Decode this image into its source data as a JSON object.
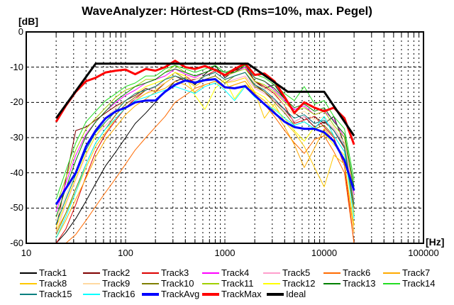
{
  "window": {
    "title": "WaveAnalyzer: Hörtest-CD (Rms=10%, max. Pegel)"
  },
  "axes": {
    "y_unit_label": "[dB]",
    "x_unit_label": "[Hz]",
    "y_tick_labels": [
      "0",
      "-10",
      "-20",
      "-30",
      "-40",
      "-50",
      "-60"
    ],
    "y_tick_values": [
      0,
      -10,
      -20,
      -30,
      -40,
      -50,
      -60
    ],
    "x_tick_labels": [
      "10",
      "100",
      "1000",
      "10000",
      "100000"
    ],
    "x_tick_values": [
      10,
      100,
      1000,
      10000,
      100000
    ]
  },
  "chart_data": {
    "type": "line",
    "title": "WaveAnalyzer: Hörtest-CD (Rms=10%, max. Pegel)",
    "xlabel": "[Hz]",
    "ylabel": "[dB]",
    "x_scale": "log",
    "xlim": [
      10,
      100000
    ],
    "ylim": [
      -60,
      0
    ],
    "grid": true,
    "grid_color": "#000000",
    "frequencies": [
      20,
      25,
      31.5,
      40,
      50,
      63,
      80,
      100,
      125,
      160,
      200,
      250,
      315,
      400,
      500,
      630,
      800,
      1000,
      1250,
      1600,
      2000,
      2500,
      3150,
      4000,
      5000,
      6300,
      8000,
      10000,
      12500,
      16000,
      20000
    ],
    "series": [
      {
        "name": "Track1",
        "color": "#000000",
        "thick": false,
        "values": [
          -60,
          -57,
          -53,
          -48,
          -43,
          -38,
          -34,
          -30,
          -26,
          -23,
          -20,
          -17,
          -14,
          -13,
          -15,
          -12,
          -9.5,
          -13,
          -11,
          -9.2,
          -14,
          -16,
          -15,
          -19,
          -23,
          -25,
          -24,
          -26,
          -24,
          -32,
          -48
        ]
      },
      {
        "name": "Track2",
        "color": "#7f0000",
        "thick": false,
        "values": [
          -56,
          -42,
          -28,
          -27,
          -25,
          -23,
          -21,
          -19.5,
          -18,
          -16,
          -17,
          -14.5,
          -12.5,
          -14,
          -13.5,
          -12.5,
          -11.5,
          -13.5,
          -12.5,
          -11.5,
          -15,
          -17,
          -19.5,
          -22,
          -25.5,
          -24,
          -27,
          -25.5,
          -28,
          -33,
          -52
        ]
      },
      {
        "name": "Track3",
        "color": "#dd0000",
        "thick": false,
        "values": [
          -60,
          -56,
          -49,
          -41,
          -34,
          -29,
          -25,
          -21.5,
          -19,
          -16.5,
          -15.5,
          -13.5,
          -11.5,
          -12.5,
          -14.5,
          -12.5,
          -11,
          -12,
          -11,
          -10,
          -14,
          -15.5,
          -17.5,
          -21,
          -26,
          -25,
          -24,
          -27,
          -30,
          -38,
          -60
        ]
      },
      {
        "name": "Track4",
        "color": "#ff00ff",
        "thick": false,
        "values": [
          -51,
          -43,
          -35,
          -29,
          -25.5,
          -22.5,
          -20,
          -18,
          -16.5,
          -14.5,
          -13.5,
          -12.5,
          -10.5,
          -12,
          -13,
          -11.5,
          -10.5,
          -12.5,
          -11.5,
          -10,
          -13,
          -14,
          -16.5,
          -19.5,
          -22,
          -21,
          -23.5,
          -22.5,
          -25,
          -30,
          -46
        ]
      },
      {
        "name": "Track5",
        "color": "#ff9ecd",
        "thick": false,
        "values": [
          -57,
          -49,
          -42,
          -35,
          -29.5,
          -26.5,
          -23.5,
          -20.5,
          -19,
          -17.5,
          -15.5,
          -14.5,
          -12.5,
          -13.5,
          -15.5,
          -13.5,
          -12.5,
          -14.5,
          -13.5,
          -12.5,
          -16,
          -17.5,
          -19.5,
          -22.5,
          -25.5,
          -24,
          -26,
          -25,
          -27.5,
          -32,
          -48
        ]
      },
      {
        "name": "Track6",
        "color": "#ff6a00",
        "thick": false,
        "values": [
          -60,
          -60,
          -57.5,
          -53.5,
          -49.5,
          -45.5,
          -41.5,
          -37.5,
          -33.5,
          -30,
          -27,
          -24,
          -20,
          -18,
          -16,
          -15,
          -14,
          -16,
          -15,
          -14,
          -18,
          -20.5,
          -24,
          -28,
          -31.5,
          -34.5,
          -30.5,
          -29.5,
          -34,
          -40,
          -60
        ]
      },
      {
        "name": "Track7",
        "color": "#ffaa00",
        "thick": false,
        "values": [
          -58.5,
          -53.5,
          -47.5,
          -41.5,
          -35.5,
          -30.5,
          -27,
          -23.5,
          -21,
          -19,
          -17,
          -16,
          -14,
          -15,
          -17,
          -15,
          -14,
          -16,
          -15,
          -14,
          -17.5,
          -19.5,
          -22.5,
          -27,
          -32,
          -38.5,
          -33,
          -27.5,
          -31,
          -37,
          -57
        ]
      },
      {
        "name": "Track8",
        "color": "#ffc800",
        "thick": false,
        "values": [
          -56.5,
          -51.5,
          -45.5,
          -38.5,
          -32.5,
          -28.5,
          -24.5,
          -21.5,
          -19.5,
          -17.5,
          -16.5,
          -14.5,
          -12.5,
          -13.5,
          -15.5,
          -13.5,
          -12.5,
          -14.5,
          -14,
          -13,
          -17,
          -24.5,
          -20.5,
          -25.5,
          -28.5,
          -32.5,
          -38.5,
          -44,
          -35,
          -37.5,
          -55
        ]
      },
      {
        "name": "Track9",
        "color": "#ffd9a0",
        "thick": false,
        "values": [
          -53.5,
          -46.5,
          -39.5,
          -32.5,
          -27.5,
          -24.5,
          -21.5,
          -19.5,
          -17.5,
          -15.5,
          -14.5,
          -13.5,
          -11.5,
          -12.5,
          -13.5,
          -12.5,
          -11.5,
          -13.5,
          -12.5,
          -11.5,
          -14.5,
          -16,
          -18,
          -21,
          -23.5,
          -22.5,
          -25,
          -24,
          -27,
          -31.5,
          -47
        ]
      },
      {
        "name": "Track10",
        "color": "#7f7f00",
        "thick": false,
        "values": [
          -57.5,
          -51.5,
          -44.5,
          -37.5,
          -31.5,
          -27.5,
          -23.5,
          -20.5,
          -18.5,
          -16.5,
          -15.5,
          -13.5,
          -11.5,
          -13.5,
          -14.5,
          -13.5,
          -12.5,
          -14.5,
          -12.5,
          -11.5,
          -15.5,
          -17,
          -20,
          -23,
          -26.5,
          -25.5,
          -27.5,
          -26.5,
          -29.5,
          -34,
          -50
        ]
      },
      {
        "name": "Track11",
        "color": "#a0d000",
        "thick": false,
        "values": [
          -49.5,
          -41.5,
          -33.5,
          -27.5,
          -24.5,
          -21.5,
          -18.5,
          -16.5,
          -15.5,
          -13.5,
          -13.5,
          -11.5,
          -9.5,
          -11.5,
          -12.5,
          -11.5,
          -10.5,
          -12.5,
          -11.5,
          -10.5,
          -14,
          -15,
          -17,
          -20,
          -22.5,
          -21.5,
          -23.5,
          -22.5,
          -26.5,
          -30,
          -45
        ]
      },
      {
        "name": "Track12",
        "color": "#ffff00",
        "thick": false,
        "values": [
          -55.5,
          -48.5,
          -41.5,
          -34.5,
          -29.5,
          -25.5,
          -22.5,
          -19.5,
          -17.5,
          -15.5,
          -14.5,
          -13.5,
          -11.5,
          -12.5,
          -18,
          -22,
          -16,
          -13.5,
          -19,
          -15,
          -17,
          -18.5,
          -21.5,
          -24.5,
          -28,
          -31,
          -27,
          -29,
          -32,
          -35,
          -52
        ]
      },
      {
        "name": "Track13",
        "color": "#008000",
        "thick": false,
        "values": [
          -52.5,
          -44.5,
          -36.5,
          -29.5,
          -25.5,
          -22.5,
          -19.5,
          -17.5,
          -15.5,
          -14.5,
          -13.5,
          -11.5,
          -10.5,
          -11.5,
          -12.5,
          -11.5,
          -10.5,
          -11.5,
          -11.5,
          -9.5,
          -13,
          -14,
          -16,
          -19,
          -21.5,
          -20.5,
          -22.5,
          -21.5,
          -25.5,
          -29,
          -44
        ]
      },
      {
        "name": "Track14",
        "color": "#22dd22",
        "thick": false,
        "values": [
          -47.5,
          -39.5,
          -31.5,
          -25.5,
          -22.5,
          -19.5,
          -17.5,
          -15.5,
          -14.5,
          -12.5,
          -12.5,
          -10.5,
          -9.5,
          -10.5,
          -11.5,
          -10.5,
          -9.5,
          -11.5,
          -10.5,
          -9.5,
          -12,
          -13,
          -15,
          -17.5,
          -19.5,
          -15.5,
          -20.5,
          -19.5,
          -24,
          -27.5,
          -42
        ]
      },
      {
        "name": "Track15",
        "color": "#007f7f",
        "thick": false,
        "values": [
          -54.5,
          -47.5,
          -40.5,
          -33.5,
          -28.5,
          -25.5,
          -22.5,
          -19.5,
          -17.5,
          -16.5,
          -15.5,
          -13.5,
          -12.5,
          -13.5,
          -14.5,
          -12.5,
          -11.5,
          -13.5,
          -12.5,
          -11.5,
          -15,
          -16.5,
          -19,
          -22,
          -24.5,
          -23.5,
          -26,
          -25,
          -28,
          -32.5,
          -49
        ]
      },
      {
        "name": "Track16",
        "color": "#00ffff",
        "thick": false,
        "values": [
          -58.5,
          -52.5,
          -45.5,
          -37.5,
          -31.5,
          -27.5,
          -24.5,
          -21.5,
          -19.5,
          -18.5,
          -17.5,
          -16.5,
          -15.5,
          -16.5,
          -17.5,
          -15.5,
          -14.5,
          -16.5,
          -19.5,
          -15.5,
          -18.5,
          -20.5,
          -22,
          -24.5,
          -26.5,
          -25.5,
          -27.5,
          -24,
          -29.5,
          -34,
          -53
        ]
      },
      {
        "name": "TrackAvg",
        "color": "#0000ff",
        "thick": true,
        "values": [
          -49,
          -44.5,
          -40,
          -32.5,
          -28,
          -24.5,
          -22.5,
          -21.5,
          -20,
          -19.5,
          -19.5,
          -17,
          -15,
          -13.8,
          -14.4,
          -13.7,
          -13.4,
          -15.7,
          -16,
          -15.4,
          -18,
          -20.5,
          -23,
          -25.5,
          -27,
          -27.5,
          -27.5,
          -28.5,
          -31,
          -36.5,
          -45
        ]
      },
      {
        "name": "TrackMax",
        "color": "#ff0000",
        "thick": true,
        "values": [
          -25.5,
          -21,
          -17,
          -14,
          -13,
          -11.5,
          -11,
          -10.7,
          -12,
          -10.5,
          -11,
          -10,
          -8.2,
          -10,
          -10.5,
          -9.7,
          -10.8,
          -12.3,
          -10.5,
          -9,
          -12.2,
          -11.8,
          -14,
          -18.5,
          -23,
          -20,
          -21.5,
          -22.5,
          -21.5,
          -24.5,
          -32
        ]
      },
      {
        "name": "Ideal",
        "color": "#000000",
        "thick": true,
        "points": [
          [
            20,
            -24.5
          ],
          [
            50,
            -9
          ],
          [
            1700,
            -9
          ],
          [
            4300,
            -17
          ],
          [
            10000,
            -17
          ],
          [
            20000,
            -29.5
          ]
        ]
      }
    ],
    "legend_position": "bottom",
    "legend_rows": [
      [
        "Track1",
        "Track2",
        "Track3",
        "Track4",
        "Track5",
        "Track6",
        "Track7"
      ],
      [
        "Track8",
        "Track9",
        "Track10",
        "Track11",
        "Track12",
        "Track13",
        "Track14"
      ],
      [
        "Track15",
        "Track16",
        "TrackAvg",
        "TrackMax",
        "Ideal"
      ]
    ]
  }
}
